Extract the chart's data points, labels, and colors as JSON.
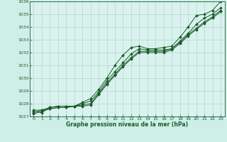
{
  "background_color": "#ceeee8",
  "plot_bg_color": "#daf2ee",
  "grid_color": "#b0d8cc",
  "line_color": "#1a5c2a",
  "marker_color": "#1a5c2a",
  "xlabel": "Graphe pression niveau de la mer (hPa)",
  "xlabel_color": "#1a5c2a",
  "tick_color": "#1a5c2a",
  "spine_color": "#1a5c2a",
  "xmin": -0.5,
  "xmax": 23.5,
  "ymin": 1027,
  "ymax": 1036,
  "yticks": [
    1027,
    1028,
    1029,
    1030,
    1031,
    1032,
    1033,
    1034,
    1035,
    1036
  ],
  "xticks": [
    0,
    1,
    2,
    3,
    4,
    5,
    6,
    7,
    8,
    9,
    10,
    11,
    12,
    13,
    14,
    15,
    16,
    17,
    18,
    19,
    20,
    21,
    22,
    23
  ],
  "series": [
    [
      1027.5,
      1027.5,
      1027.7,
      1027.8,
      1027.8,
      1027.8,
      1028.1,
      1028.4,
      1029.1,
      1030.0,
      1031.0,
      1031.8,
      1032.4,
      1032.5,
      1032.3,
      1032.3,
      1032.4,
      1032.5,
      1033.2,
      1034.0,
      1034.9,
      1035.0,
      1035.3,
      1036.0
    ],
    [
      1027.4,
      1027.3,
      1027.7,
      1027.8,
      1027.8,
      1027.8,
      1028.0,
      1028.2,
      1028.9,
      1029.8,
      1030.5,
      1031.2,
      1031.9,
      1032.3,
      1032.2,
      1032.2,
      1032.2,
      1032.3,
      1032.9,
      1033.5,
      1034.2,
      1034.7,
      1035.0,
      1035.5
    ],
    [
      1027.3,
      1027.5,
      1027.6,
      1027.7,
      1027.7,
      1027.8,
      1027.9,
      1028.0,
      1028.8,
      1029.6,
      1030.3,
      1031.0,
      1031.6,
      1032.1,
      1032.1,
      1032.1,
      1032.1,
      1032.3,
      1032.8,
      1033.4,
      1033.9,
      1034.4,
      1034.8,
      1035.3
    ],
    [
      1027.2,
      1027.4,
      1027.6,
      1027.7,
      1027.7,
      1027.8,
      1027.8,
      1027.9,
      1028.7,
      1029.5,
      1030.2,
      1030.9,
      1031.5,
      1032.0,
      1032.0,
      1032.0,
      1032.0,
      1032.2,
      1032.7,
      1033.3,
      1033.8,
      1034.3,
      1034.7,
      1035.2
    ]
  ]
}
